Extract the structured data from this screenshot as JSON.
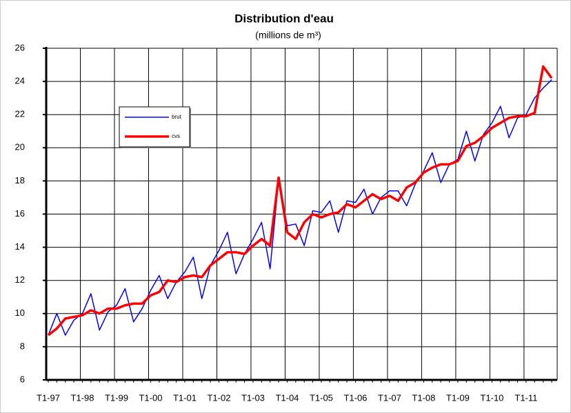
{
  "chart_data": {
    "type": "line",
    "title": "Distribution d'eau",
    "subtitle": "(millions de m³)",
    "categories": [
      "T1-97",
      null,
      null,
      null,
      "T1-98",
      null,
      null,
      null,
      "T1-99",
      null,
      null,
      null,
      "T1-00",
      null,
      null,
      null,
      "T1-01",
      null,
      null,
      null,
      "T1-02",
      null,
      null,
      null,
      "T1-03",
      null,
      null,
      null,
      "T1-04",
      null,
      null,
      null,
      "T1-05",
      null,
      null,
      null,
      "T1-06",
      null,
      null,
      null,
      "T1-07",
      null,
      null,
      null,
      "T1-08",
      null,
      null,
      null,
      "T1-09",
      null,
      null,
      null,
      "T1-10",
      null,
      null,
      null,
      "T1-11",
      null,
      null,
      null
    ],
    "series": [
      {
        "name": "brut",
        "color": "#0000ff",
        "width": 1.5,
        "values": [
          8.7,
          10.0,
          8.7,
          9.6,
          10.0,
          11.2,
          9.0,
          10.1,
          10.5,
          11.5,
          9.5,
          10.3,
          11.4,
          12.3,
          10.9,
          11.9,
          12.5,
          13.4,
          10.9,
          12.9,
          13.8,
          14.9,
          12.4,
          13.6,
          14.5,
          15.5,
          12.7,
          18.1,
          15.3,
          15.4,
          14.1,
          16.2,
          16.1,
          16.8,
          14.9,
          16.8,
          16.7,
          17.5,
          16.0,
          17.0,
          17.4,
          17.4,
          16.5,
          17.8,
          18.6,
          19.7,
          17.9,
          19.0,
          19.3,
          21.0,
          19.2,
          20.8,
          21.5,
          22.5,
          20.6,
          21.8,
          22.0,
          23.0,
          23.6,
          24.1
        ]
      },
      {
        "name": "cvs",
        "color": "#ff0000",
        "width": 3.5,
        "values": [
          8.7,
          9.1,
          9.7,
          9.8,
          9.9,
          10.2,
          10.0,
          10.3,
          10.3,
          10.5,
          10.6,
          10.6,
          11.1,
          11.3,
          12.0,
          11.9,
          12.2,
          12.3,
          12.2,
          12.9,
          13.3,
          13.7,
          13.7,
          13.6,
          14.1,
          14.5,
          14.1,
          18.2,
          14.9,
          14.5,
          15.5,
          16.0,
          15.8,
          16.0,
          16.1,
          16.6,
          16.4,
          16.8,
          17.2,
          16.9,
          17.1,
          16.8,
          17.6,
          17.9,
          18.5,
          18.8,
          19.0,
          19.0,
          19.2,
          20.1,
          20.3,
          20.7,
          21.2,
          21.5,
          21.8,
          21.9,
          21.9,
          22.1,
          24.9,
          24.2
        ]
      }
    ],
    "ylim": [
      6,
      26
    ],
    "yticks": [
      6,
      8,
      10,
      12,
      14,
      16,
      18,
      20,
      22,
      24,
      26
    ],
    "grid": true,
    "legend": "upper left"
  }
}
